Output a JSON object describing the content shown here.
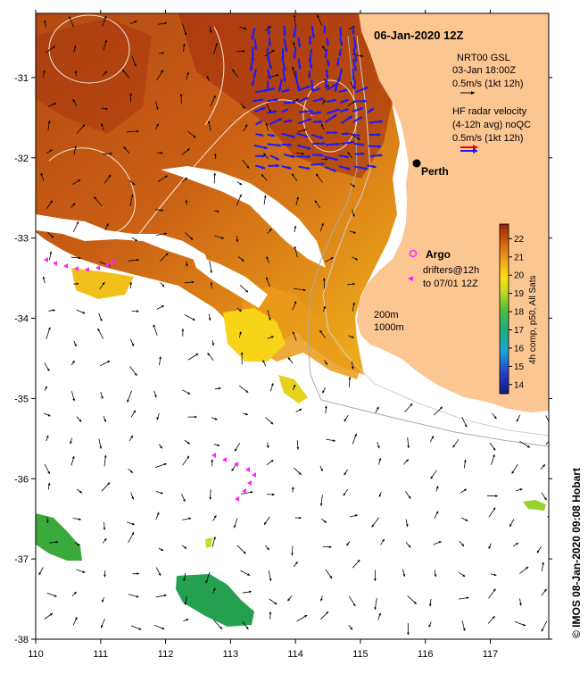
{
  "map": {
    "title": "06-Jan-2020 12Z",
    "city": "Perth",
    "bathymetry": [
      "200m",
      "1000m"
    ],
    "lon_ticks": [
      "110",
      "111",
      "112",
      "113",
      "114",
      "115",
      "116",
      "117"
    ],
    "lat_ticks": [
      "-31",
      "-32",
      "-33",
      "-34",
      "-35",
      "-36",
      "-37",
      "-38"
    ],
    "lon_range": [
      110,
      117.9
    ],
    "lat_range": [
      -30.2,
      -38
    ]
  },
  "legend": {
    "gsl_title": "NRT00 GSL",
    "gsl_time": "03-Jan 18:00Z",
    "gsl_scale": "0.5m/s (1kt 12h)",
    "radar_title": "HF radar velocity",
    "radar_sub": "(4-12h avg) noQC",
    "radar_scale": "0.5m/s (1kt 12h)",
    "argo": "Argo",
    "drifters": "drifters@12h",
    "drifters_to": "to 07/01 12Z"
  },
  "colorbar": {
    "label": "4h comp, p50, All Sats",
    "ticks": [
      "22",
      "21",
      "20",
      "19",
      "18",
      "17",
      "16",
      "15",
      "14"
    ],
    "range": [
      13.5,
      22.8
    ]
  },
  "credit": "© IMOS 08-Jan-2020 09:08 Hobart",
  "colors": {
    "land": "#fcc693",
    "ocean_missing": "#ffffff",
    "radar_arrow": "#1a1aff",
    "drifter": "#ff22ff"
  }
}
